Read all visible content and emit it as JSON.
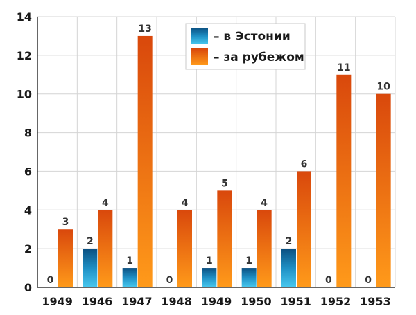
{
  "chart_data": {
    "type": "bar",
    "title": "",
    "xlabel": "",
    "ylabel": "",
    "categories": [
      "1949",
      "1946",
      "1947",
      "1948",
      "1949",
      "1950",
      "1951",
      "1952",
      "1953"
    ],
    "series": [
      {
        "name": "– в Эстонии",
        "values": [
          0,
          2,
          1,
          0,
          1,
          1,
          2,
          0,
          0
        ],
        "color": "#1f8fc4"
      },
      {
        "name": "– за рубежом",
        "values": [
          3,
          4,
          13,
          4,
          5,
          4,
          6,
          11,
          10
        ],
        "color": "#f07a12"
      }
    ],
    "ylim": [
      0,
      14
    ],
    "yticks": [
      0,
      2,
      4,
      6,
      8,
      10,
      12,
      14
    ],
    "grid": true,
    "legend_position": "top-center"
  }
}
